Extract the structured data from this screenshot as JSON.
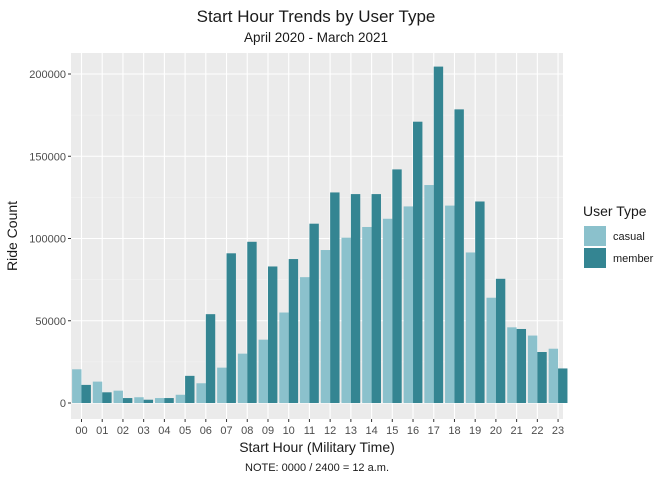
{
  "chart_data": {
    "type": "bar",
    "title": "Start Hour Trends by User Type",
    "subtitle": "April 2020 - March 2021",
    "xlabel": "Start Hour (Military Time)",
    "ylabel": "Ride Count",
    "caption": "NOTE: 0000 / 2400 = 12 a.m.",
    "ylim": [
      0,
      213000
    ],
    "y_ticks": [
      0,
      50000,
      100000,
      150000,
      200000
    ],
    "y_tick_labels": [
      "0",
      "50000",
      "100000",
      "150000",
      "200000"
    ],
    "grid": true,
    "categories": [
      "00",
      "01",
      "02",
      "03",
      "04",
      "05",
      "06",
      "07",
      "08",
      "09",
      "10",
      "11",
      "12",
      "13",
      "14",
      "15",
      "16",
      "17",
      "18",
      "19",
      "20",
      "21",
      "22",
      "23"
    ],
    "series": [
      {
        "name": "casual",
        "color": "#8bc1cc",
        "values": [
          20500,
          13000,
          7500,
          3500,
          3000,
          5000,
          12000,
          21500,
          30000,
          38500,
          55000,
          76500,
          93000,
          100500,
          107000,
          112000,
          119500,
          132500,
          120000,
          91500,
          64000,
          46000,
          41000,
          33000
        ]
      },
      {
        "name": "member",
        "color": "#348592",
        "values": [
          11000,
          6500,
          3000,
          2000,
          3000,
          16500,
          54000,
          91000,
          98000,
          83000,
          87500,
          109000,
          128000,
          127000,
          127000,
          142000,
          171000,
          204500,
          178500,
          122500,
          75500,
          45000,
          31000,
          21000
        ]
      }
    ],
    "legend": {
      "title": "User Type",
      "placement": "right"
    }
  }
}
